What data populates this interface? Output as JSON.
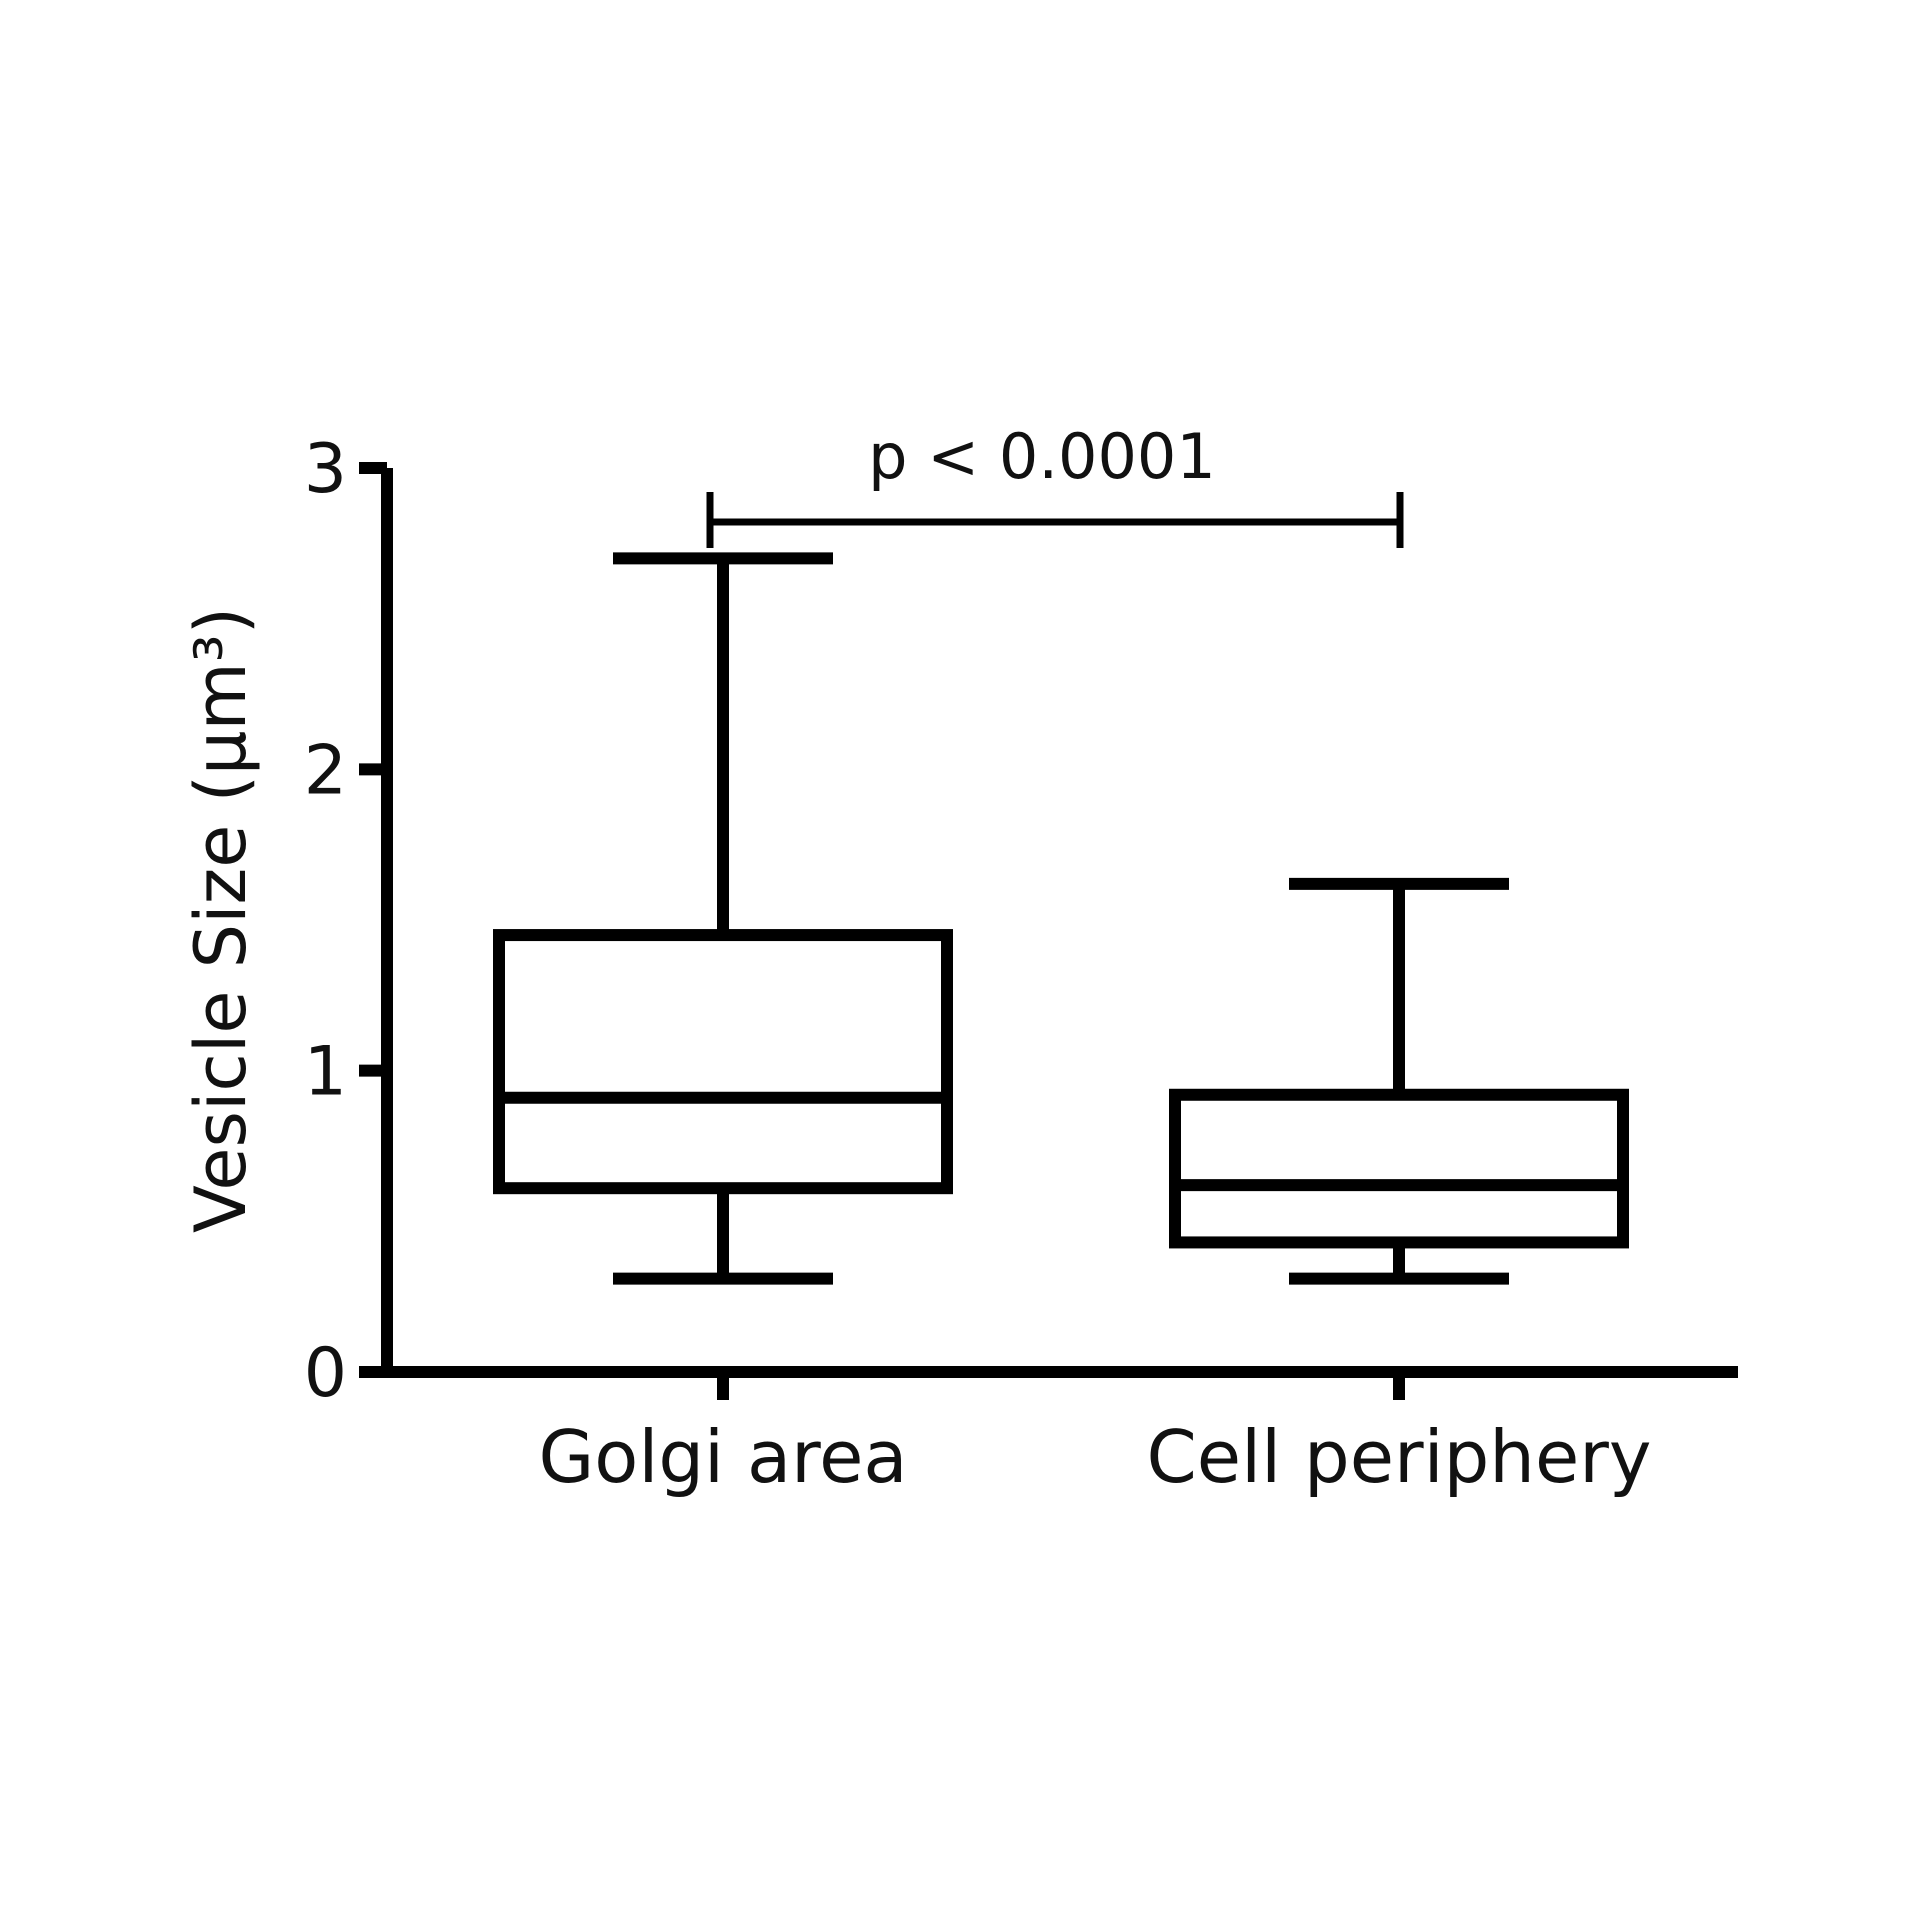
{
  "chart_data": {
    "type": "box",
    "ylabel": "Vesicle Size  (µm³)",
    "annotation": "p < 0.0001",
    "categories": [
      "Golgi area",
      "Cell periphery"
    ],
    "min": [
      0.31,
      0.31
    ],
    "q1": [
      0.61,
      0.43
    ],
    "median": [
      0.91,
      0.62
    ],
    "q3": [
      1.45,
      0.92
    ],
    "max": [
      2.7,
      1.62
    ],
    "color": "#000000",
    "ylim": [
      0,
      3
    ],
    "yticks": [
      0,
      1,
      2,
      3
    ],
    "grid": false
  }
}
